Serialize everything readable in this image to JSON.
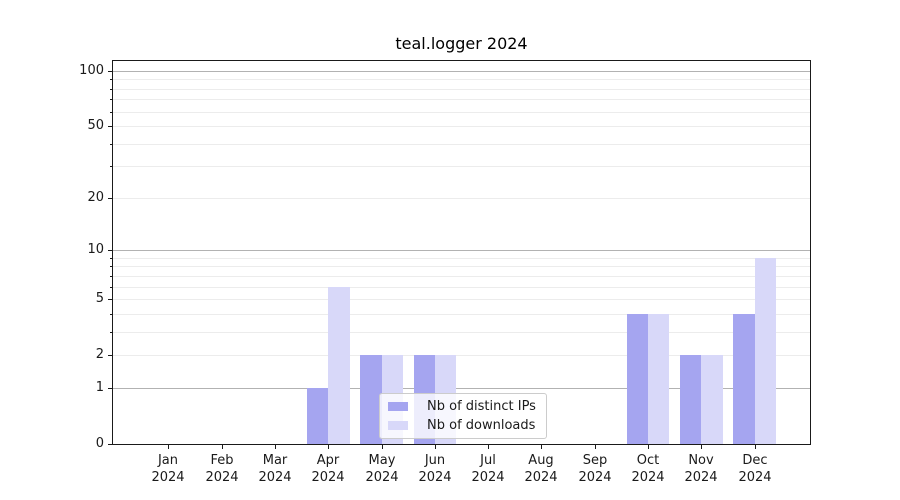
{
  "chart_data": {
    "type": "bar",
    "title": "teal.logger 2024",
    "categories": [
      "Jan 2024",
      "Feb 2024",
      "Mar 2024",
      "Apr 2024",
      "May 2024",
      "Jun 2024",
      "Jul 2024",
      "Aug 2024",
      "Sep 2024",
      "Oct 2024",
      "Nov 2024",
      "Dec 2024"
    ],
    "series": [
      {
        "name": "Nb of distinct IPs",
        "color": "#a5a5f0",
        "values": [
          0,
          0,
          0,
          1,
          2,
          2,
          0,
          0,
          0,
          4,
          2,
          4
        ]
      },
      {
        "name": "Nb of downloads",
        "color": "#d8d8f9",
        "values": [
          0,
          0,
          0,
          6,
          2,
          2,
          0,
          0,
          0,
          4,
          2,
          9
        ]
      }
    ],
    "yscale": "log1p",
    "ylim": [
      0,
      113
    ],
    "yticks": [
      0,
      1,
      2,
      5,
      10,
      20,
      50,
      100
    ],
    "yticks_minor": [
      3,
      4,
      6,
      7,
      8,
      9,
      30,
      40,
      60,
      70,
      80,
      90
    ],
    "gridlines_major": [
      1,
      10,
      100
    ],
    "gridlines_minor": [
      2,
      3,
      4,
      5,
      6,
      7,
      8,
      9,
      20,
      30,
      40,
      50,
      60,
      70,
      80,
      90
    ],
    "xlabel": "",
    "ylabel": "",
    "grid": true,
    "legend_position": "inside-lower-center"
  },
  "colors": {
    "grid_major": "#b2b2b2",
    "grid_minor": "#ececec",
    "axis": "#1a1a1a",
    "background": "#ffffff"
  }
}
